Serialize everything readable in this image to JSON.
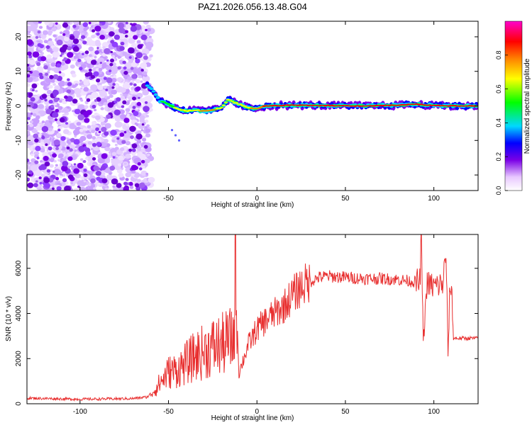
{
  "title": "PAZ1.2026.056.13.48.G04",
  "chart_data": [
    {
      "type": "heatmap",
      "xlabel": "Height of straight line (km)",
      "ylabel": "Frequency (Hz)",
      "xlim": [
        -130,
        125
      ],
      "ylim": [
        -24.5,
        24.5
      ],
      "x_ticks": [
        -100,
        -50,
        0,
        50,
        100
      ],
      "x_tick_labels": [
        "-100",
        "-50",
        "0",
        "50",
        "100"
      ],
      "y_ticks": [
        -20,
        -10,
        0,
        10,
        20
      ],
      "y_tick_labels": [
        "-20",
        "-10",
        "0",
        "10",
        "20"
      ],
      "noise_region_x": [
        -130,
        -62
      ],
      "ridge": {
        "x": [
          -62,
          -58,
          -55,
          -50,
          -45,
          -40,
          -35,
          -30,
          -25,
          -20,
          -16,
          -14,
          -10,
          -5,
          0,
          5,
          20,
          40,
          60,
          80,
          90,
          95,
          100,
          110,
          125
        ],
        "freq": [
          6,
          4,
          1.5,
          0.5,
          -0.8,
          -1.5,
          -1.2,
          -1.5,
          -1.2,
          -0.5,
          2,
          1.2,
          0.5,
          -0.5,
          -0.8,
          0,
          0.2,
          0.1,
          0,
          0.2,
          0.5,
          0.3,
          0.1,
          0,
          0
        ],
        "amp": [
          0.4,
          0.45,
          0.5,
          0.6,
          0.7,
          0.75,
          0.75,
          0.8,
          0.8,
          0.75,
          0.7,
          0.7,
          0.7,
          0.75,
          0.85,
          0.9,
          0.95,
          0.95,
          0.95,
          0.9,
          0.9,
          0.9,
          0.92,
          0.95,
          0.95
        ]
      },
      "colorbar": {
        "label": "Normalized spectral amplitude",
        "range": [
          0,
          1
        ],
        "ticks": [
          0.0,
          0.2,
          0.4,
          0.6,
          0.8
        ],
        "tick_labels": [
          "0.0",
          "0.2",
          "0.4",
          "0.6",
          "0.8"
        ]
      }
    },
    {
      "type": "line",
      "xlabel": "Height of straight line (km)",
      "ylabel": "SNR (10 * v/v)",
      "xlim": [
        -130,
        125
      ],
      "ylim": [
        0,
        7500
      ],
      "x_ticks": [
        -100,
        -50,
        0,
        50,
        100
      ],
      "x_tick_labels": [
        "-100",
        "-50",
        "0",
        "50",
        "100"
      ],
      "y_ticks": [
        0,
        2000,
        4000,
        6000
      ],
      "y_tick_labels": [
        "0",
        "2000",
        "4000",
        "6000"
      ],
      "line_color": "#e83030",
      "series": [
        {
          "name": "SNR",
          "x": [
            -130,
            -100,
            -70,
            -62,
            -58,
            -55,
            -52,
            -50,
            -45,
            -40,
            -35,
            -30,
            -25,
            -20,
            -15,
            -13,
            -12,
            -11,
            -10,
            -5,
            0,
            5,
            10,
            15,
            20,
            25,
            30,
            35,
            40,
            50,
            60,
            70,
            80,
            90,
            92,
            93,
            94,
            96,
            100,
            105,
            107,
            108,
            109,
            110,
            111,
            125
          ],
          "y": [
            250,
            200,
            230,
            300,
            600,
            900,
            1200,
            1400,
            1500,
            1800,
            2100,
            2300,
            2500,
            2600,
            2800,
            3000,
            6800,
            3000,
            1400,
            2600,
            3300,
            3700,
            4000,
            4300,
            4800,
            5200,
            5400,
            5600,
            5650,
            5600,
            5550,
            5550,
            5500,
            5400,
            5300,
            7400,
            2600,
            5300,
            5200,
            5300,
            6600,
            2000,
            5100,
            5200,
            2900,
            2900
          ]
        }
      ]
    }
  ]
}
